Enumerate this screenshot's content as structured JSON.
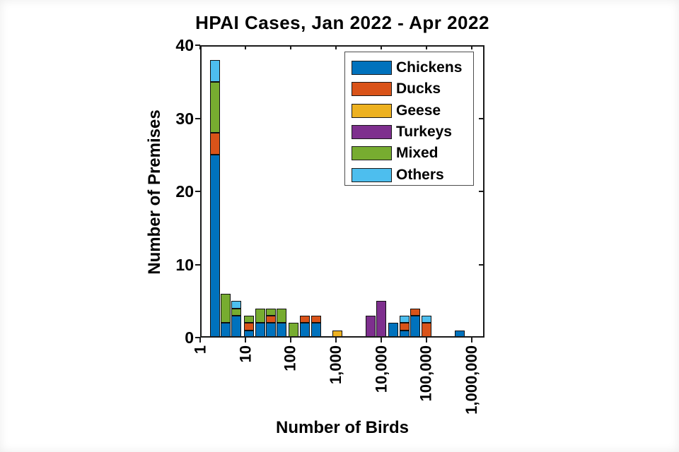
{
  "chart_data": {
    "type": "bar",
    "stacked": true,
    "x_scale": "log10",
    "title": "HPAI Cases, Jan 2022 - Apr 2022",
    "xlabel": "Number of Birds",
    "ylabel": "Number of Premises",
    "ylim": [
      0,
      40
    ],
    "yticks": [
      0,
      10,
      20,
      30,
      40
    ],
    "xticks": [
      {
        "value": 1,
        "label": "1"
      },
      {
        "value": 10,
        "label": "10"
      },
      {
        "value": 100,
        "label": "100"
      },
      {
        "value": 1000,
        "label": "1,000"
      },
      {
        "value": 10000,
        "label": "10,000"
      },
      {
        "value": 100000,
        "label": "100,000"
      },
      {
        "value": 1000000,
        "label": "1,000,000"
      }
    ],
    "grid": false,
    "legend_position": "inside-top-right",
    "series_order": [
      "Chickens",
      "Ducks",
      "Geese",
      "Turkeys",
      "Mixed",
      "Others"
    ],
    "legend": [
      {
        "name": "Chickens",
        "color": "#0072BD"
      },
      {
        "name": "Ducks",
        "color": "#D95319"
      },
      {
        "name": "Geese",
        "color": "#EDB120"
      },
      {
        "name": "Turkeys",
        "color": "#7E2F8E"
      },
      {
        "name": "Mixed",
        "color": "#77AC30"
      },
      {
        "name": "Others",
        "color": "#4DBEEE"
      }
    ],
    "bars": [
      {
        "birds_approx": 2.1,
        "total": 38,
        "segments": {
          "Chickens": 25,
          "Ducks": 3,
          "Mixed": 7,
          "Others": 3
        }
      },
      {
        "birds_approx": 3.6,
        "total": 6,
        "segments": {
          "Chickens": 2,
          "Mixed": 4
        }
      },
      {
        "birds_approx": 6.3,
        "total": 5,
        "segments": {
          "Chickens": 3,
          "Mixed": 1,
          "Others": 1
        }
      },
      {
        "birds_approx": 12,
        "total": 3,
        "segments": {
          "Chickens": 1,
          "Ducks": 1,
          "Mixed": 1
        }
      },
      {
        "birds_approx": 21,
        "total": 4,
        "segments": {
          "Chickens": 2,
          "Mixed": 2
        }
      },
      {
        "birds_approx": 36,
        "total": 4,
        "segments": {
          "Chickens": 2,
          "Ducks": 1,
          "Mixed": 1
        }
      },
      {
        "birds_approx": 63,
        "total": 4,
        "segments": {
          "Chickens": 2,
          "Mixed": 2
        }
      },
      {
        "birds_approx": 117,
        "total": 2,
        "segments": {
          "Mixed": 2
        }
      },
      {
        "birds_approx": 208,
        "total": 3,
        "segments": {
          "Chickens": 2,
          "Ducks": 1
        }
      },
      {
        "birds_approx": 363,
        "total": 3,
        "segments": {
          "Chickens": 2,
          "Ducks": 1
        }
      },
      {
        "birds_approx": 1080,
        "total": 1,
        "segments": {
          "Geese": 1
        }
      },
      {
        "birds_approx": 5800,
        "total": 3,
        "segments": {
          "Turkeys": 3
        }
      },
      {
        "birds_approx": 10100,
        "total": 5,
        "segments": {
          "Turkeys": 5
        }
      },
      {
        "birds_approx": 18600,
        "total": 2,
        "segments": {
          "Chickens": 2
        }
      },
      {
        "birds_approx": 32500,
        "total": 3,
        "segments": {
          "Chickens": 1,
          "Ducks": 1,
          "Others": 1
        }
      },
      {
        "birds_approx": 55700,
        "total": 4,
        "segments": {
          "Chickens": 3,
          "Ducks": 1
        }
      },
      {
        "birds_approx": 99500,
        "total": 3,
        "segments": {
          "Ducks": 2,
          "Others": 1
        }
      },
      {
        "birds_approx": 540000,
        "total": 1,
        "segments": {
          "Chickens": 1
        }
      }
    ]
  }
}
